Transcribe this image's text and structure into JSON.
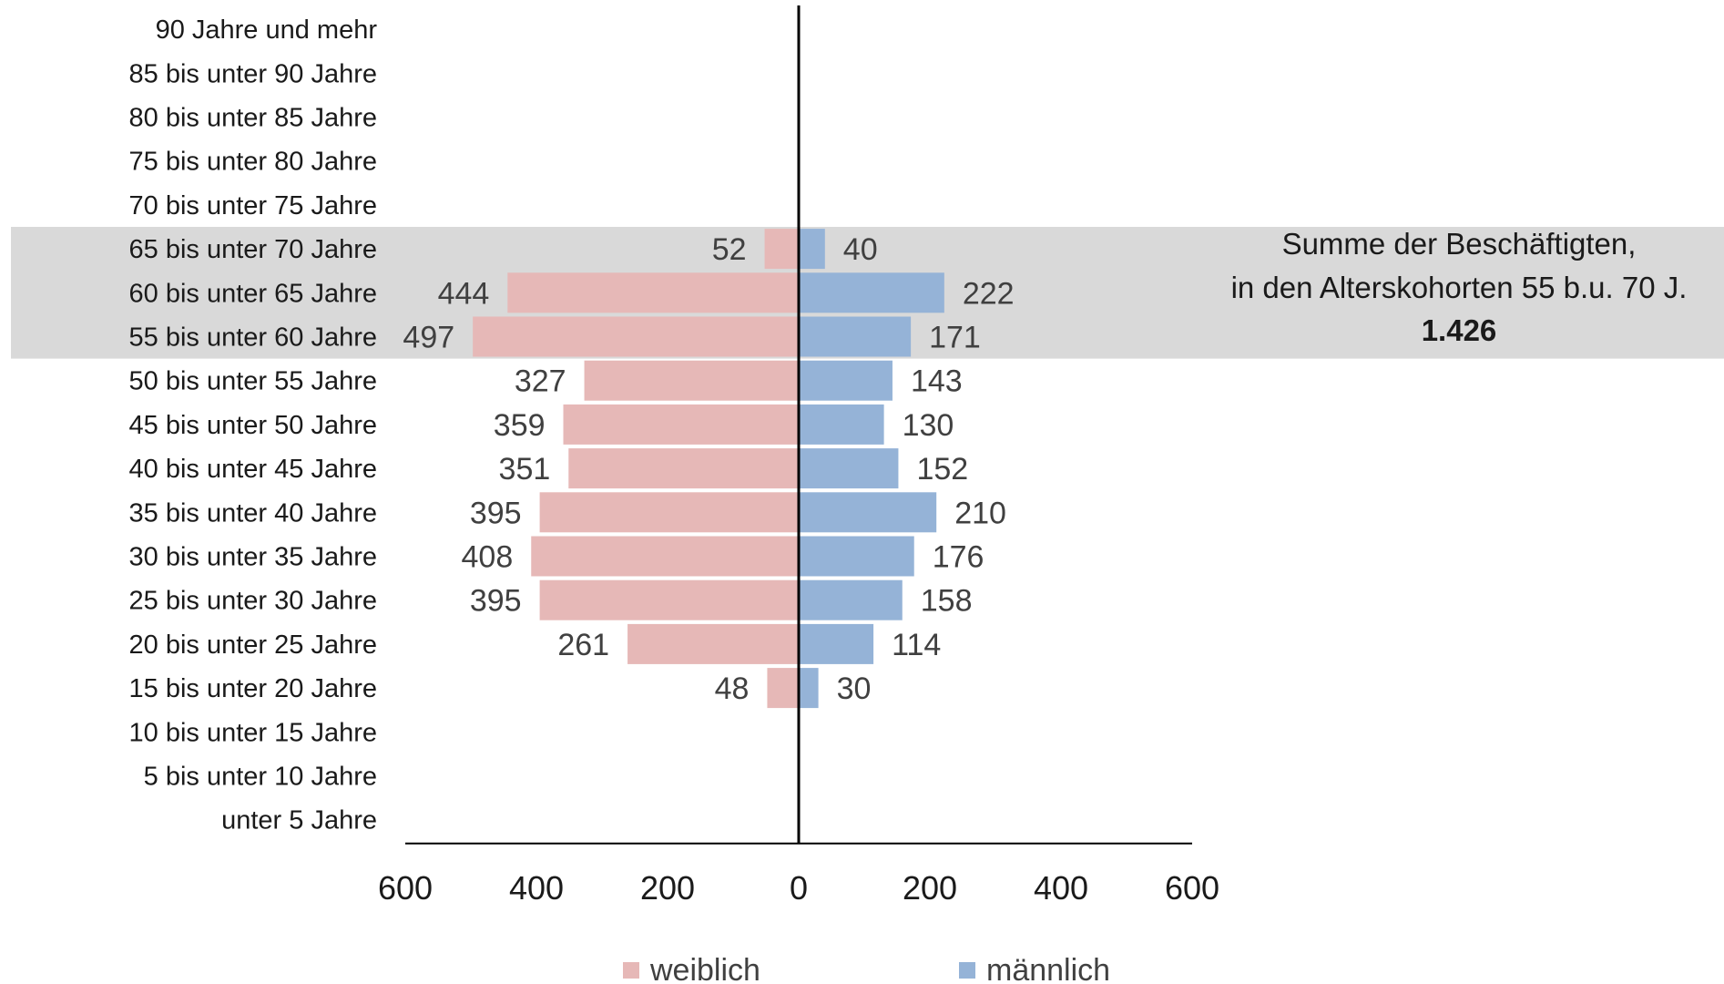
{
  "chart_data": {
    "type": "bar",
    "orientation": "horizontal-population-pyramid",
    "categories": [
      "unter 5 Jahre",
      "5 bis unter 10 Jahre",
      "10 bis unter 15 Jahre",
      "15 bis unter 20 Jahre",
      "20 bis unter 25 Jahre",
      "25 bis unter 30 Jahre",
      "30 bis unter 35 Jahre",
      "35 bis unter 40 Jahre",
      "40 bis unter 45 Jahre",
      "45 bis unter 50 Jahre",
      "50 bis unter 55 Jahre",
      "55 bis unter 60 Jahre",
      "60 bis unter 65 Jahre",
      "65 bis unter 70 Jahre",
      "70 bis unter 75 Jahre",
      "75 bis unter 80 Jahre",
      "80 bis unter 85 Jahre",
      "85 bis unter 90 Jahre",
      "90 Jahre und mehr"
    ],
    "series": [
      {
        "name": "weiblich",
        "color": "#e6b8b7",
        "side": "left",
        "values": [
          null,
          null,
          null,
          48,
          261,
          395,
          408,
          395,
          351,
          359,
          327,
          497,
          444,
          52,
          null,
          null,
          null,
          null,
          null
        ]
      },
      {
        "name": "männlich",
        "color": "#95b3d7",
        "side": "right",
        "values": [
          null,
          null,
          null,
          30,
          114,
          158,
          176,
          210,
          152,
          130,
          143,
          171,
          222,
          40,
          null,
          null,
          null,
          null,
          null
        ]
      }
    ],
    "xlim": [
      -600,
      600
    ],
    "xticks": [
      -600,
      -400,
      -200,
      0,
      200,
      400,
      600
    ],
    "xtick_labels": [
      "600",
      "400",
      "200",
      "0",
      "200",
      "400",
      "600"
    ],
    "highlight": {
      "categories": [
        "55 bis unter 60 Jahre",
        "60 bis unter 65 Jahre",
        "65 bis unter 70 Jahre"
      ],
      "color": "#d9d9d9"
    },
    "annotation": {
      "line1": "Summe der Beschäftigten,",
      "line2": "in den Alterskohorten 55 b.u. 70 J.",
      "total": "1.426"
    },
    "legend_position": "bottom-center",
    "grid": false
  }
}
